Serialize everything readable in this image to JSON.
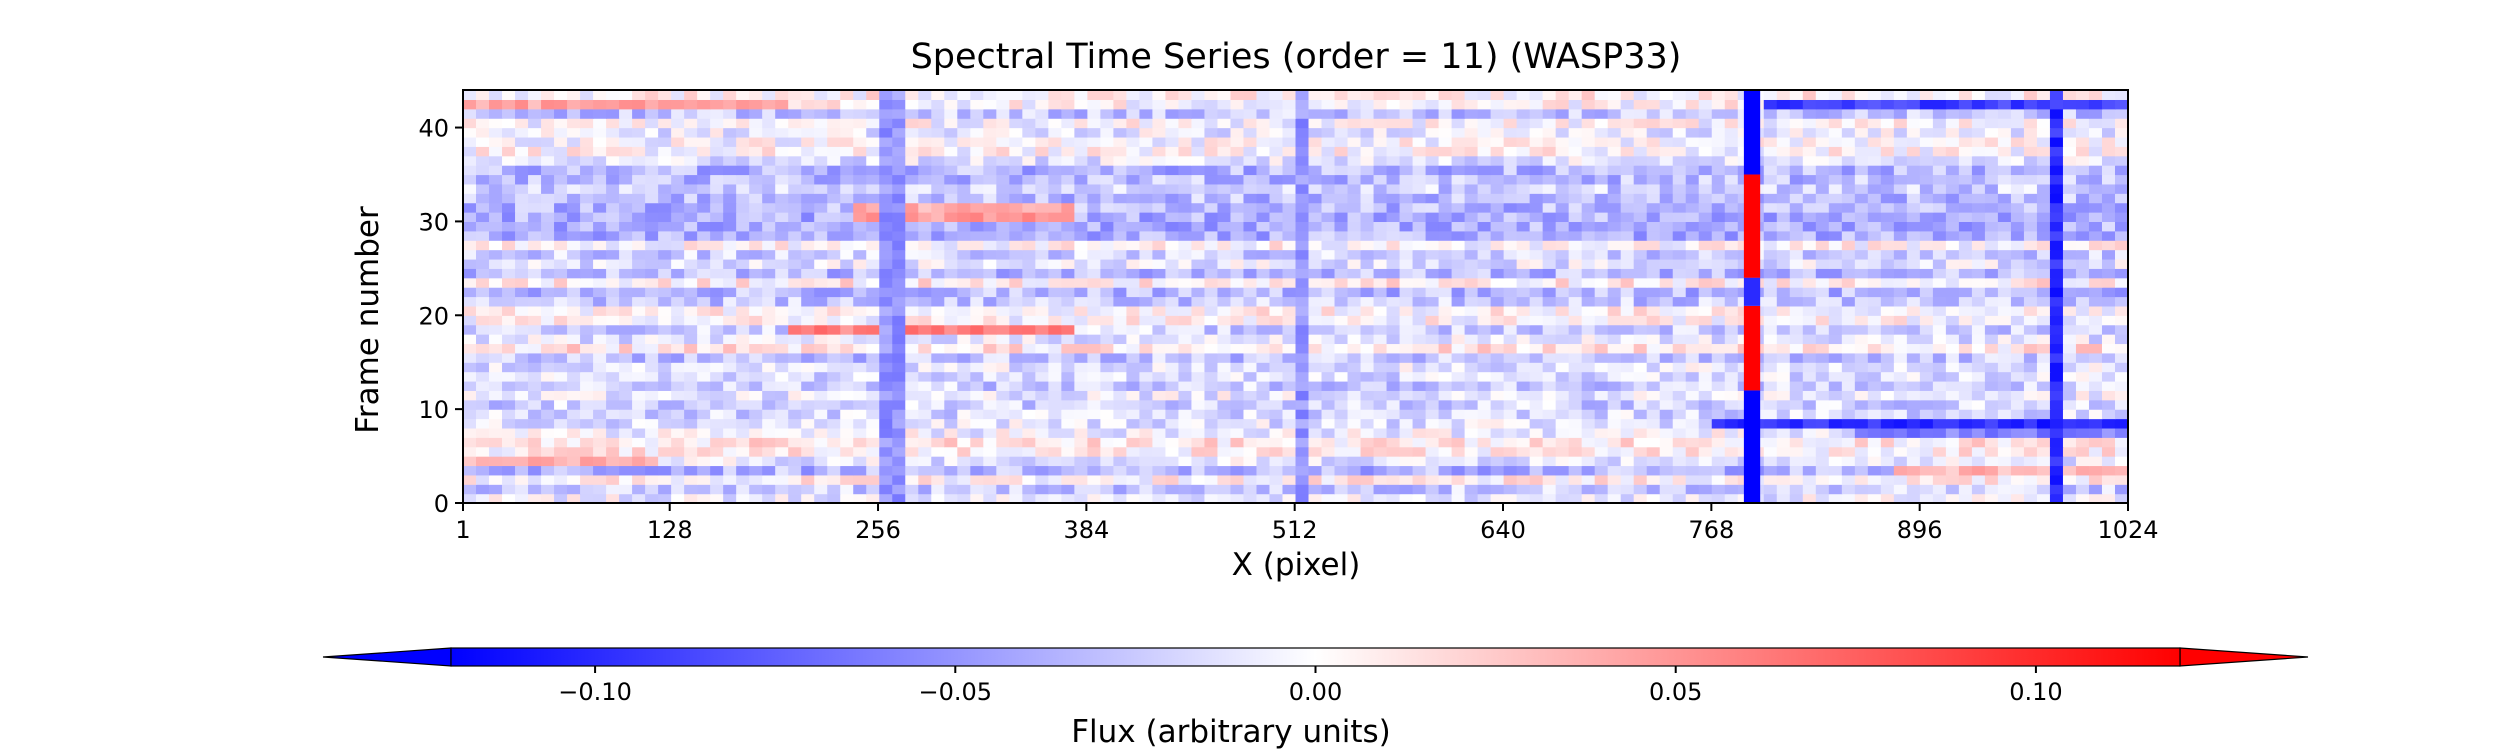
{
  "chart_data": {
    "type": "heatmap",
    "title": "Spectral Time Series (order = 11) (WASP33)",
    "xlabel": "X (pixel)",
    "ylabel": "Frame number",
    "xlim": [
      1,
      1024
    ],
    "ylim": [
      0,
      44
    ],
    "x_ticks": [
      1,
      128,
      256,
      384,
      512,
      640,
      768,
      896,
      1024
    ],
    "y_ticks": [
      0,
      10,
      20,
      30,
      40
    ],
    "n_frames": 44,
    "colormap": "bwr",
    "colorbar": {
      "label": "Flux (arbitrary units)",
      "range": [
        -0.12,
        0.12
      ],
      "extend": "both",
      "ticks": [
        -0.1,
        -0.05,
        0.0,
        0.05,
        0.1
      ],
      "tick_labels": [
        "−0.10",
        "−0.05",
        "0.00",
        "0.05",
        "0.10"
      ],
      "min_color": "#0000ff",
      "mid_color": "#ffffff",
      "max_color": "#ff0000"
    },
    "features": {
      "column_bands": [
        {
          "x_start": 788,
          "x_end": 798,
          "frames": [
            0,
            12
          ],
          "value": -0.12
        },
        {
          "x_start": 788,
          "x_end": 798,
          "frames": [
            12,
            21
          ],
          "value": 0.12
        },
        {
          "x_start": 788,
          "x_end": 798,
          "frames": [
            21,
            24
          ],
          "value": -0.1
        },
        {
          "x_start": 788,
          "x_end": 798,
          "frames": [
            24,
            35
          ],
          "value": 0.12
        },
        {
          "x_start": 788,
          "x_end": 798,
          "frames": [
            35,
            44
          ],
          "value": -0.12
        }
      ],
      "row_bands": [
        {
          "frame": 42,
          "x_start": 1,
          "x_end": 200,
          "value": 0.04
        },
        {
          "frame": 42,
          "x_start": 800,
          "x_end": 1024,
          "value": -0.09
        },
        {
          "frame": 30,
          "x_start": 240,
          "x_end": 380,
          "value": 0.045
        },
        {
          "frame": 31,
          "x_start": 240,
          "x_end": 380,
          "value": 0.04
        },
        {
          "frame": 18,
          "x_start": 200,
          "x_end": 380,
          "value": 0.06
        },
        {
          "frame": 8,
          "x_start": 770,
          "x_end": 1024,
          "value": -0.1
        },
        {
          "frame": 7,
          "x_start": 860,
          "x_end": 1024,
          "value": -0.06
        },
        {
          "frame": 4,
          "x_start": 1,
          "x_end": 120,
          "value": 0.04
        },
        {
          "frame": 3,
          "x_start": 880,
          "x_end": 1024,
          "value": 0.035
        }
      ],
      "vertical_lines": [
        {
          "x": 265,
          "value": -0.05
        },
        {
          "x": 515,
          "value": -0.05
        },
        {
          "x": 980,
          "value": -0.1
        }
      ]
    }
  }
}
